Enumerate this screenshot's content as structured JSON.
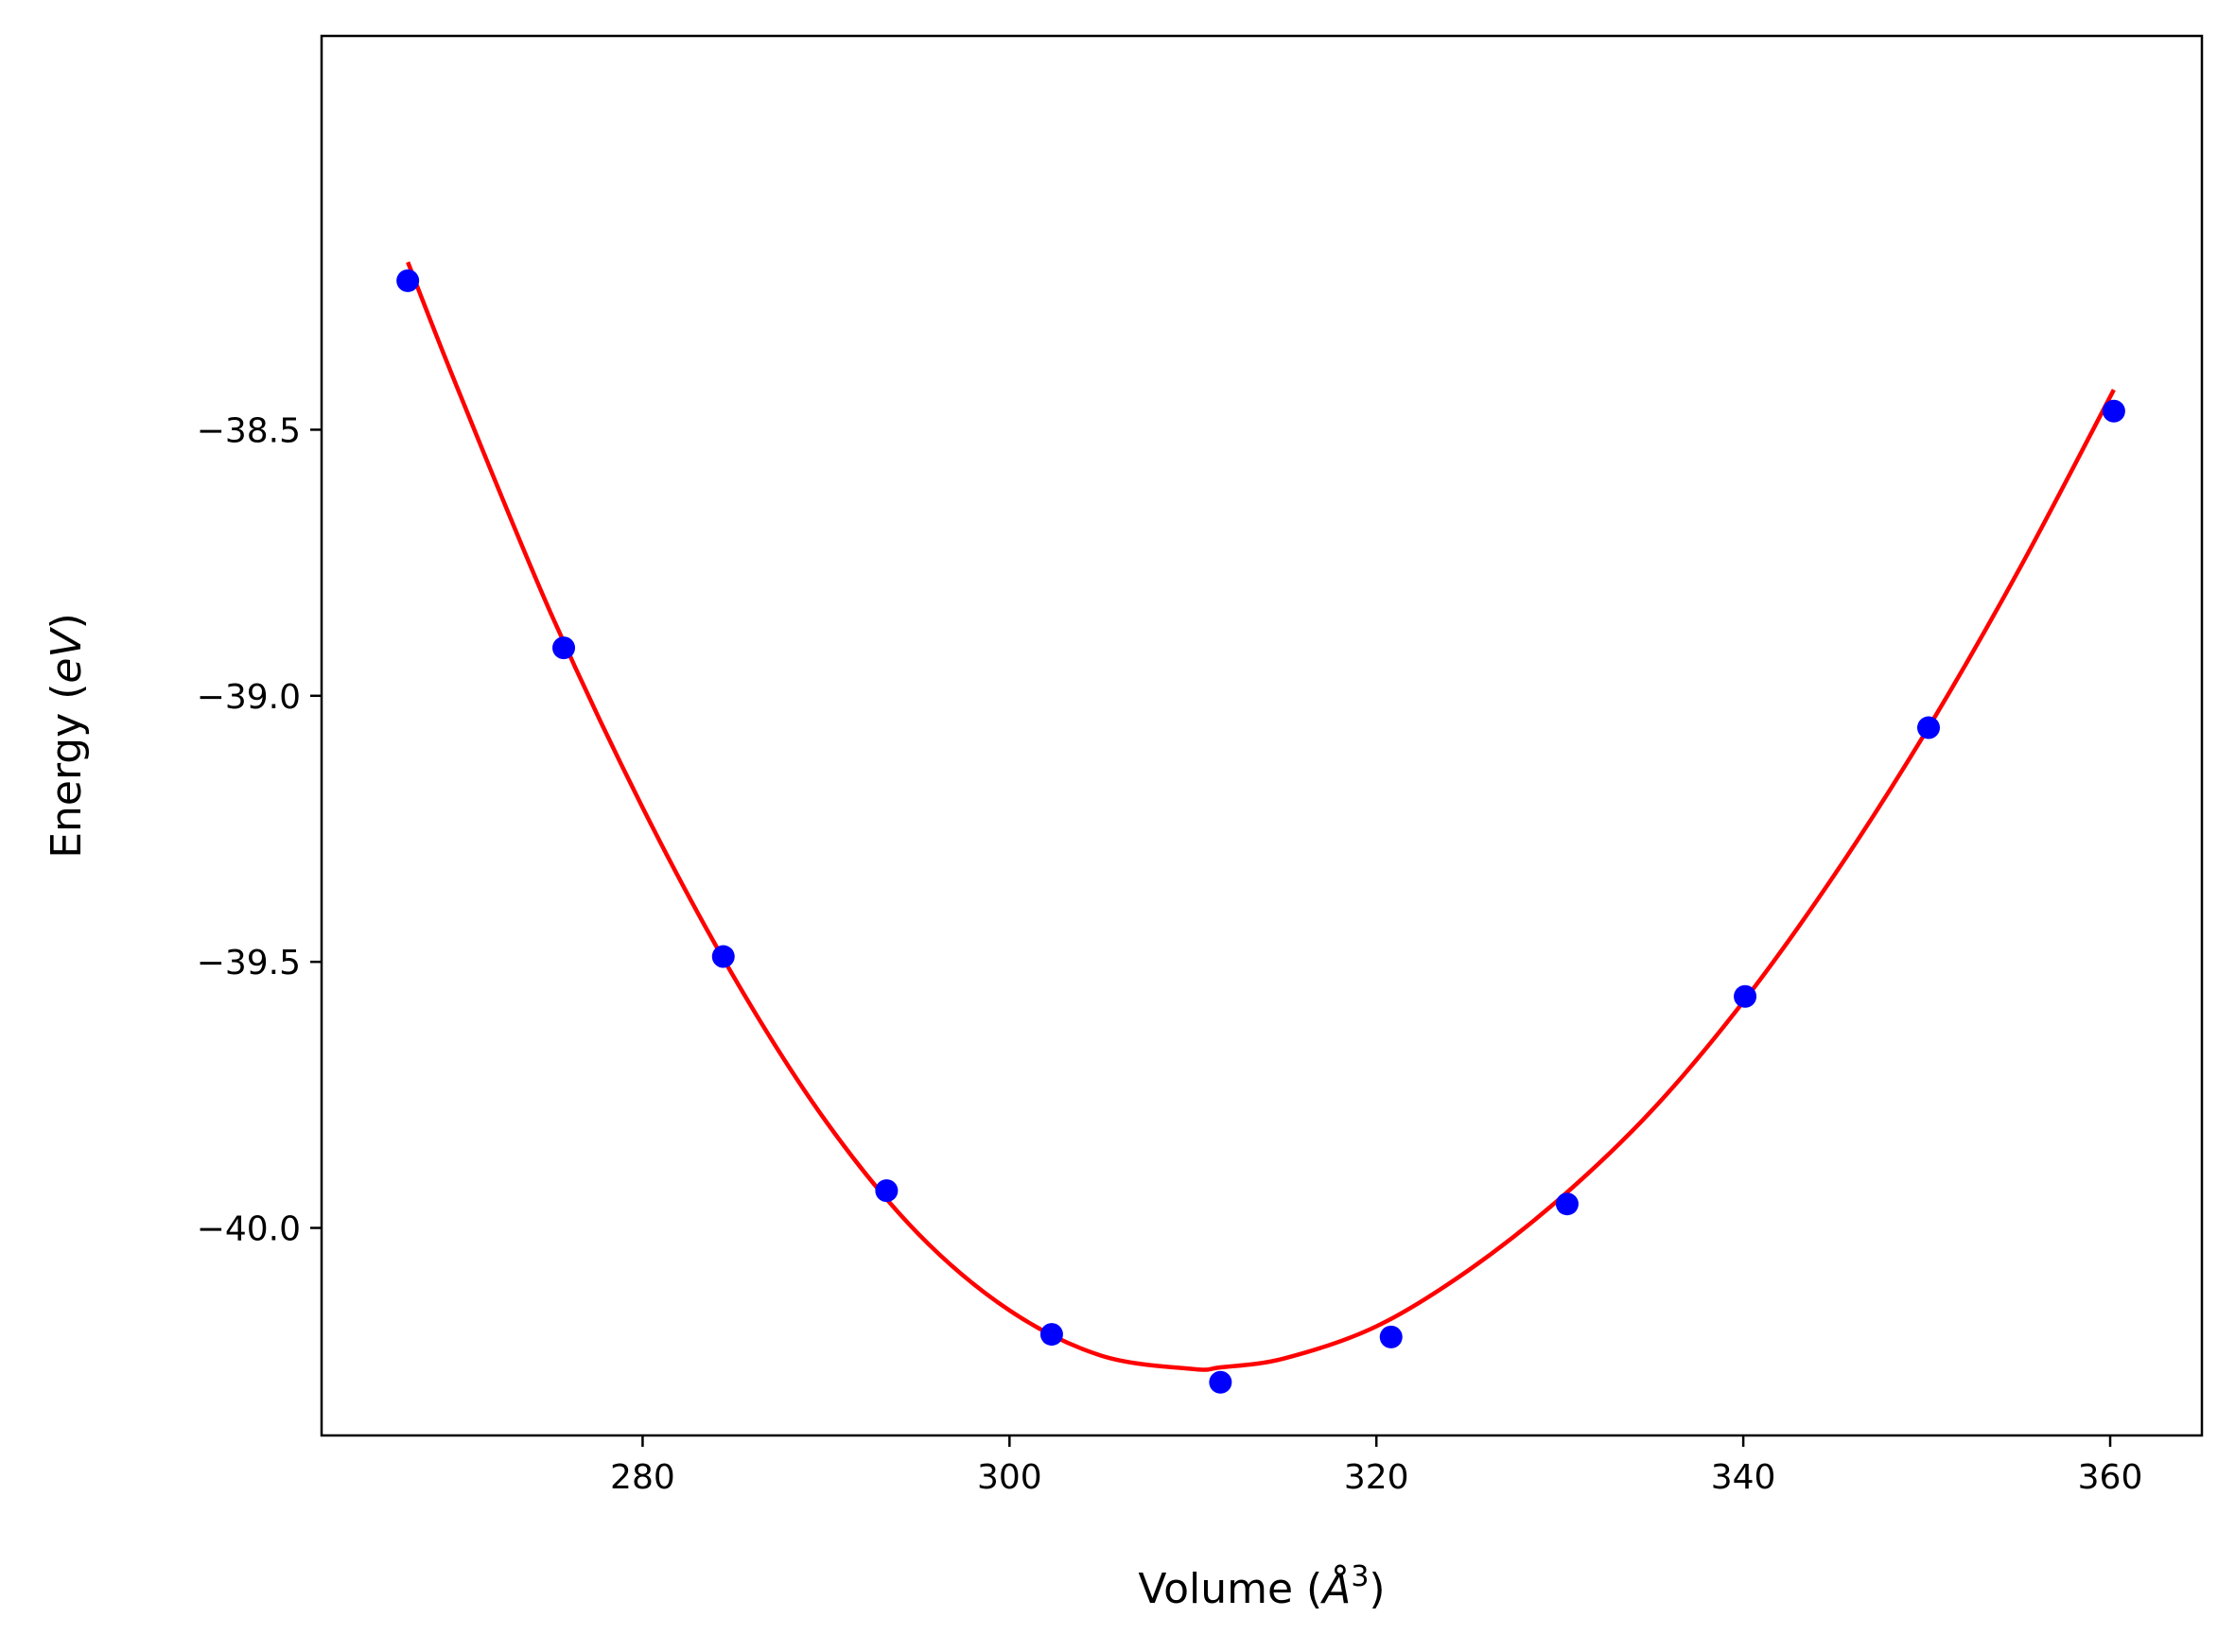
{
  "chart_data": {
    "type": "scatter",
    "xlabel": {
      "prefix": "Volume (",
      "unit": "Å",
      "sup": "3",
      "suffix": ")"
    },
    "ylabel": {
      "prefix": "Energy (",
      "unit": "eV",
      "suffix": ")"
    },
    "xlim": [
      262.5,
      365
    ],
    "ylim": [
      -40.39,
      -37.76
    ],
    "xticks": [
      280,
      300,
      320,
      340,
      360
    ],
    "yticks": [
      -38.5,
      -39.0,
      -39.5,
      -40.0
    ],
    "x_tick_labels": [
      "280",
      "300",
      "320",
      "340",
      "360"
    ],
    "y_tick_labels": [
      "−38.5",
      "−39.0",
      "−39.5",
      "−40.0"
    ],
    "grid": false,
    "series": [
      {
        "kind": "points",
        "color": "#0000ff",
        "x": [
          267.2,
          275.7,
          284.4,
          293.3,
          302.3,
          311.5,
          320.8,
          330.4,
          340.1,
          350.1,
          360.2
        ],
        "y": [
          -38.22,
          -38.91,
          -39.49,
          -39.93,
          -40.2,
          -40.29,
          -40.205,
          -39.955,
          -39.565,
          -39.06,
          -38.465
        ]
      },
      {
        "kind": "fit",
        "color": "#ff0000",
        "x": [
          267.2,
          270,
          275,
          280,
          285,
          290,
          295,
          300,
          305,
          310,
          311.5,
          315,
          320,
          325,
          330,
          335,
          340,
          345,
          350,
          355,
          360.2
        ],
        "y": [
          -38.185,
          -38.43,
          -38.845,
          -39.21,
          -39.53,
          -39.8,
          -40.01,
          -40.155,
          -40.24,
          -40.265,
          -40.262,
          -40.245,
          -40.185,
          -40.08,
          -39.945,
          -39.78,
          -39.575,
          -39.335,
          -39.065,
          -38.765,
          -38.425
        ]
      }
    ]
  }
}
